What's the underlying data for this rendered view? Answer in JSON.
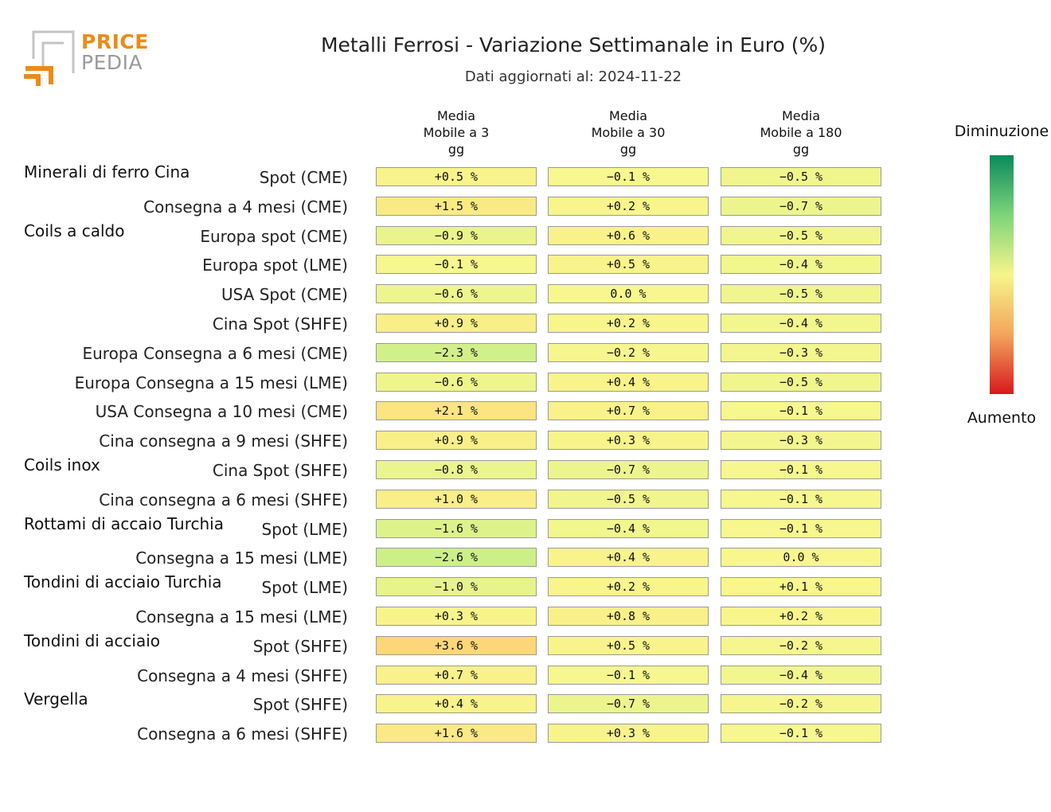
{
  "header": {
    "logo_top": "PRICE",
    "logo_bottom": "PEDIA",
    "title": "Metalli Ferrosi - Variazione Settimanale in Euro (%)",
    "subtitle": "Dati aggiornati al: 2024-11-22"
  },
  "legend": {
    "top_label": "Diminuzione",
    "bottom_label": "Aumento",
    "gradient_colors": [
      "#0b8a5c",
      "#7dd47a",
      "#f6f58a",
      "#f3a55e",
      "#d7191c"
    ]
  },
  "chart_data": {
    "type": "heatmap",
    "title": "Metalli Ferrosi - Variazione Settimanale in Euro (%)",
    "subtitle": "Dati aggiornati al: 2024-11-22",
    "columns": [
      [
        "Media",
        "Mobile a 3",
        "gg"
      ],
      [
        "Media",
        "Mobile a 30",
        "gg"
      ],
      [
        "Media",
        "Mobile a 180",
        "gg"
      ]
    ],
    "unit": "%",
    "groups": [
      {
        "name": "Minerali di ferro Cina",
        "rows": [
          {
            "label": "Spot (CME)",
            "values": [
              0.5,
              -0.1,
              -0.5
            ]
          },
          {
            "label": "Consegna a 4 mesi (CME)",
            "values": [
              1.5,
              0.2,
              -0.7
            ]
          }
        ]
      },
      {
        "name": "Coils a caldo",
        "rows": [
          {
            "label": "Europa spot (CME)",
            "values": [
              -0.9,
              0.6,
              -0.5
            ]
          },
          {
            "label": "Europa spot (LME)",
            "values": [
              -0.1,
              0.5,
              -0.4
            ]
          },
          {
            "label": "USA Spot (CME)",
            "values": [
              -0.6,
              0.0,
              -0.5
            ]
          },
          {
            "label": "Cina Spot (SHFE)",
            "values": [
              0.9,
              0.2,
              -0.4
            ]
          },
          {
            "label": "Europa Consegna a 6 mesi (CME)",
            "values": [
              -2.3,
              -0.2,
              -0.3
            ]
          },
          {
            "label": "Europa Consegna a 15 mesi (LME)",
            "values": [
              -0.6,
              0.4,
              -0.5
            ]
          },
          {
            "label": "USA Consegna a 10 mesi (CME)",
            "values": [
              2.1,
              0.7,
              -0.1
            ]
          },
          {
            "label": "Cina consegna a 9 mesi (SHFE)",
            "values": [
              0.9,
              0.3,
              -0.3
            ]
          }
        ]
      },
      {
        "name": "Coils inox",
        "rows": [
          {
            "label": "Cina Spot (SHFE)",
            "values": [
              -0.8,
              -0.7,
              -0.1
            ]
          },
          {
            "label": "Cina consegna a 6 mesi (SHFE)",
            "values": [
              1.0,
              -0.5,
              -0.1
            ]
          }
        ]
      },
      {
        "name": "Rottami di accaio Turchia",
        "rows": [
          {
            "label": "Spot (LME)",
            "values": [
              -1.6,
              -0.4,
              -0.1
            ]
          },
          {
            "label": "Consegna a 15 mesi (LME)",
            "values": [
              -2.6,
              0.4,
              0.0
            ]
          }
        ]
      },
      {
        "name": "Tondini di acciaio Turchia",
        "rows": [
          {
            "label": "Spot (LME)",
            "values": [
              -1.0,
              0.2,
              0.1
            ]
          },
          {
            "label": "Consegna a 15 mesi (LME)",
            "values": [
              0.3,
              0.8,
              0.2
            ]
          }
        ]
      },
      {
        "name": "Tondini di acciaio",
        "rows": [
          {
            "label": "Spot (SHFE)",
            "values": [
              3.6,
              0.5,
              -0.2
            ]
          },
          {
            "label": "Consegna a 4 mesi (SHFE)",
            "values": [
              0.7,
              -0.1,
              -0.4
            ]
          }
        ]
      },
      {
        "name": "Vergella",
        "rows": [
          {
            "label": "Spot (SHFE)",
            "values": [
              0.4,
              -0.7,
              -0.2
            ]
          },
          {
            "label": "Consegna a 6 mesi (SHFE)",
            "values": [
              1.6,
              0.3,
              -0.1
            ]
          }
        ]
      }
    ]
  }
}
